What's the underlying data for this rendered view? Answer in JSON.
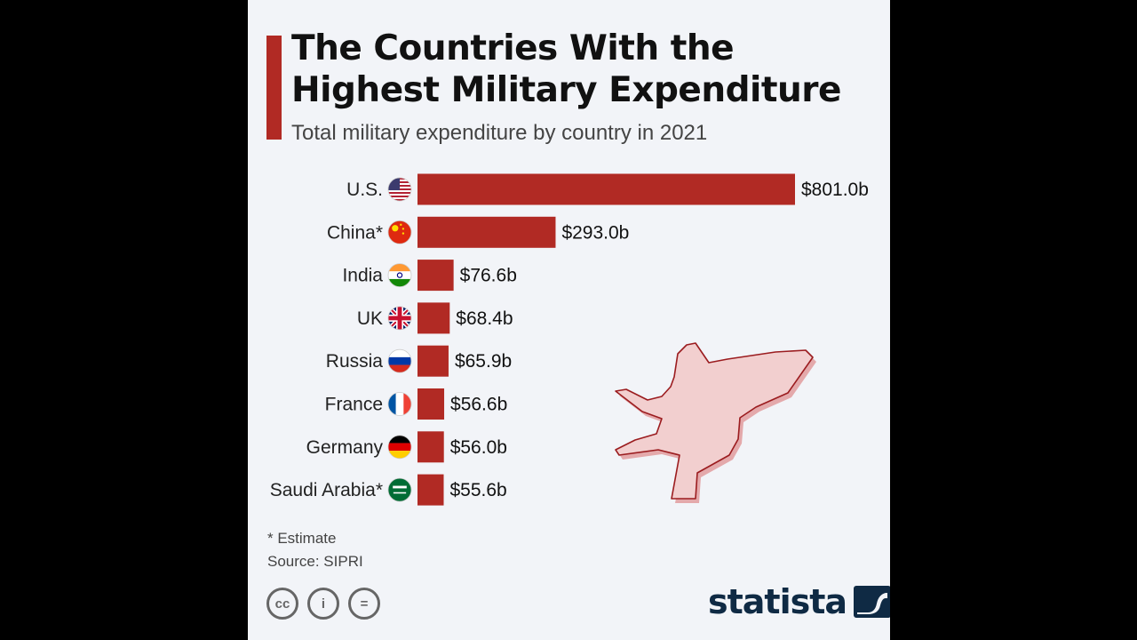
{
  "title": "The Countries With the Highest Military Expenditure",
  "subtitle": "Total military expenditure by country in 2021",
  "footnote": "* Estimate",
  "source": "Source: SIPRI",
  "brand": "statista",
  "colors": {
    "bar": "#b12a24",
    "accent": "#b12a24",
    "background": "#f2f4f8",
    "jet": "#f0c8c8"
  },
  "icons": [
    "us-flag-icon",
    "china-flag-icon",
    "india-flag-icon",
    "uk-flag-icon",
    "russia-flag-icon",
    "france-flag-icon",
    "germany-flag-icon",
    "saudi-arabia-flag-icon",
    "fighter-jet-icon",
    "cc-icon",
    "attribution-icon",
    "no-derivatives-icon",
    "statista-logo-icon"
  ],
  "license_icons": [
    {
      "name": "cc-icon",
      "glyph": "cc"
    },
    {
      "name": "attribution-icon",
      "glyph": "i"
    },
    {
      "name": "no-derivatives-icon",
      "glyph": "="
    }
  ],
  "chart_data": {
    "type": "bar",
    "orientation": "horizontal",
    "title": "The Countries With the Highest Military Expenditure",
    "subtitle": "Total military expenditure by country in 2021",
    "categories": [
      "U.S.",
      "China*",
      "India",
      "UK",
      "Russia",
      "France",
      "Germany",
      "Saudi Arabia*"
    ],
    "flags": [
      "us",
      "china",
      "india",
      "uk",
      "russia",
      "france",
      "germany",
      "saudi-arabia"
    ],
    "values": [
      801.0,
      293.0,
      76.6,
      68.4,
      65.9,
      56.6,
      56.0,
      55.6
    ],
    "value_labels": [
      "$801.0b",
      "$293.0b",
      "$76.6b",
      "$68.4b",
      "$65.9b",
      "$56.6b",
      "$56.0b",
      "$55.6b"
    ],
    "unit": "USD billions",
    "xlim": [
      0,
      801.0
    ],
    "grid": false,
    "legend": "none"
  }
}
